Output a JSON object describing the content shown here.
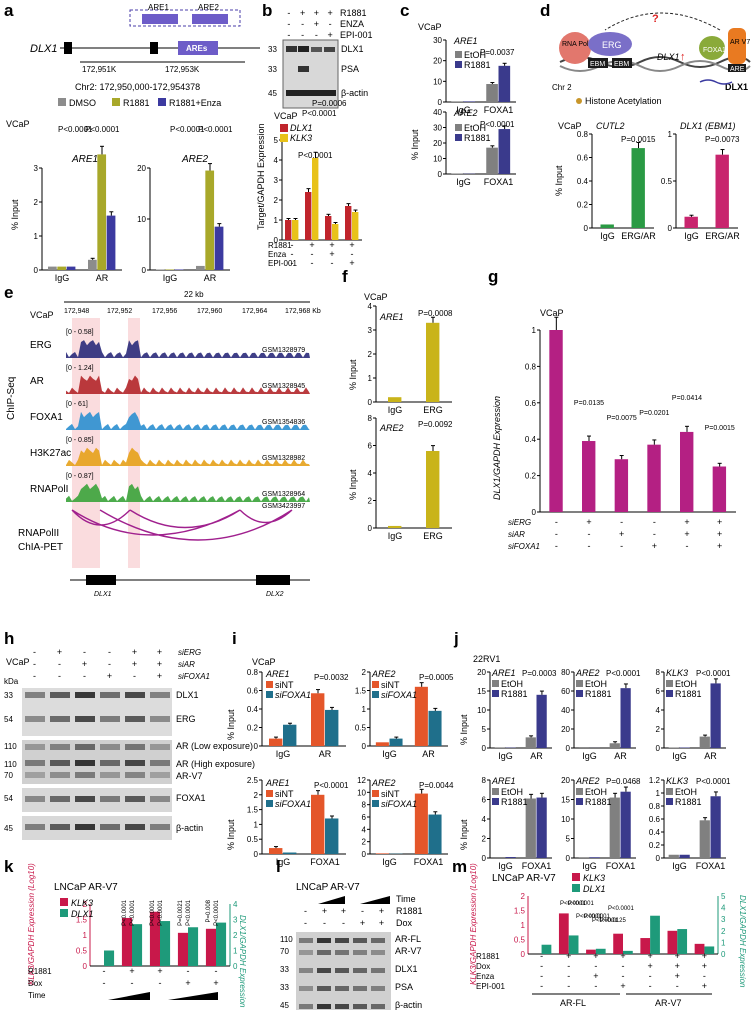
{
  "colors": {
    "dmso": "#8c8c8c",
    "r1881": "#a8a82a",
    "enza": "#3c3aa0",
    "dlx1": "#c0242c",
    "klk3": "#e8c21a",
    "etoh": "#808080",
    "r1881v": "#3a3a8c",
    "erg": "#2a9a44",
    "ergar": "#c8256e",
    "sint": "#e4562a",
    "sifoxa1": "#1f6f8b",
    "magenta": "#b42083",
    "erggold": "#c9b41a",
    "klk3m": "#c8184a",
    "dlx1t": "#1e9a7a"
  },
  "panels": {
    "a": "a",
    "b": "b",
    "c": "c",
    "d": "d",
    "e": "e",
    "f": "f",
    "g": "g",
    "h": "h",
    "i": "i",
    "j": "j",
    "k": "k",
    "l": "l",
    "m": "m"
  },
  "a": {
    "gene": "DLX1",
    "are1": "ARE1",
    "are2": "ARE2",
    "ares": "AREs",
    "coord1": "172,951K",
    "coord2": "172,953K",
    "chr": "Chr2: 172,950,000-172,954378",
    "cell": "VCaP",
    "legend": [
      "DMSO",
      "R1881",
      "R1881+Enza"
    ],
    "ylabel": "% Input",
    "p": "P<0.0001",
    "xt": [
      "IgG",
      "AR"
    ]
  },
  "b": {
    "conds": [
      "R1881",
      "ENZA",
      "EPI-001"
    ],
    "signs": [
      [
        "-",
        "+",
        "+",
        "+"
      ],
      [
        "-",
        "-",
        "+",
        "-"
      ],
      [
        "-",
        "-",
        "-",
        "+"
      ]
    ],
    "kda": [
      "33",
      "33",
      "45"
    ],
    "bands": [
      "DLX1",
      "PSA",
      "β-actin"
    ],
    "cell": "VCaP",
    "ylabel": "Target/GAPDH Expression",
    "legend": [
      "DLX1",
      "KLK3"
    ],
    "p1": "P=0.0006",
    "p2": "P<0.0001",
    "p3": "P<0.0001",
    "xl": [
      "R1881",
      "Enza",
      "EPI-001"
    ],
    "xs": [
      [
        "-",
        "+",
        "+",
        "+"
      ],
      [
        "-",
        "-",
        "+",
        "-"
      ],
      [
        "-",
        "-",
        "-",
        "+"
      ]
    ]
  },
  "c": {
    "cell": "VCaP",
    "t1": "ARE1",
    "t2": "ARE2",
    "p1": "P=0.0037",
    "p2": "P<0.0001",
    "legend": [
      "EtOH",
      "R1881"
    ],
    "ylabel": "% Input",
    "xt": [
      "IgG",
      "FOXA1"
    ]
  },
  "d": {
    "labels": [
      "RNA Pol",
      "ERG",
      "EBM",
      "EBM",
      "DLX1",
      "FOXA1",
      "AR V7",
      "ARE",
      "DLX1"
    ],
    "q": "?",
    "chr": "Chr 2",
    "hist": "Histone Acetylation",
    "cell": "VCaP",
    "t1": "CUTL2",
    "t2": "DLX1 (EBM1)",
    "p1": "P=0.0015",
    "p2": "P=0.0073",
    "ylabel": "% Input",
    "xt": [
      "IgG",
      "ERG/AR"
    ]
  },
  "e": {
    "cell": "VCaP",
    "scale": "22 kb",
    "coords": [
      "172,948",
      "172,952",
      "172,956",
      "172,960",
      "172,964",
      "172,968 Kb"
    ],
    "tracks": [
      {
        "name": "ERG",
        "range": "[0 - 0.58]",
        "gsm": "GSM1328979"
      },
      {
        "name": "AR",
        "range": "[0 - 1.24]",
        "gsm": "GSM1328945"
      },
      {
        "name": "FOXA1",
        "range": "[0 - 61]",
        "gsm": "GSM1354836"
      },
      {
        "name": "H3K27ac",
        "range": "[0 - 0.85]",
        "gsm": "GSM1328982"
      },
      {
        "name": "RNAPolI",
        "range": "[0 - 0.87]",
        "gsm": "GSM1328964"
      },
      {
        "name": "",
        "range": "",
        "gsm": "GSM3423997"
      }
    ],
    "side": "ChIP-Seq",
    "chia1": "RNAPolII",
    "chia2": "ChIA-PET",
    "genes": [
      "DLX1",
      "DLX2"
    ]
  },
  "f": {
    "cell": "VCaP",
    "t1": "ARE1",
    "t2": "ARE2",
    "p1": "P=0.0008",
    "p2": "P=0.0092",
    "ylabel": "% Input",
    "xt": [
      "IgG",
      "ERG"
    ]
  },
  "g": {
    "cell": "VCaP",
    "ylabel": "DLX1/GAPDH Expression",
    "yt": [
      "0.0",
      "0.2",
      "0.4",
      "0.6",
      "0.8",
      "1.0"
    ],
    "p": [
      "P=0.0135",
      "P=0.0075",
      "P=0.0201",
      "P=0.0414",
      "P=0.0015"
    ],
    "rows": [
      "siERG",
      "siAR",
      "siFOXA1"
    ],
    "signs": [
      [
        "-",
        "+",
        "-",
        "-",
        "+",
        "+"
      ],
      [
        "-",
        "-",
        "+",
        "-",
        "+",
        "+"
      ],
      [
        "-",
        "-",
        "-",
        "+",
        "-",
        "+"
      ]
    ]
  },
  "h": {
    "cell": "VCaP",
    "rows": [
      "siERG",
      "siAR",
      "siFOXA1"
    ],
    "signs": [
      [
        "-",
        "+",
        "-",
        "-",
        "+",
        "+"
      ],
      [
        "-",
        "-",
        "+",
        "-",
        "+",
        "+"
      ],
      [
        "-",
        "-",
        "-",
        "+",
        "-",
        "+"
      ]
    ],
    "kda": [
      "kDa",
      "33",
      "54",
      "110",
      "110",
      "70",
      "54",
      "45"
    ],
    "bands": [
      "DLX1",
      "ERG",
      "AR (Low exposure)",
      "AR (High exposure)",
      "AR-V7",
      "FOXA1",
      "β-actin"
    ]
  },
  "i": {
    "cell": "VCaP",
    "t": [
      "ARE1",
      "ARE2",
      "ARE1",
      "ARE2"
    ],
    "p": [
      "P=0.0032",
      "P=0.0005",
      "P<0.0001",
      "P=0.0044"
    ],
    "legend": [
      "siNT",
      "siFOXA1"
    ],
    "ylabel": "% Input",
    "xt1": [
      "IgG",
      "AR"
    ],
    "xt2": [
      "IgG",
      "FOXA1"
    ]
  },
  "j": {
    "cell": "22RV1",
    "t": [
      "ARE1",
      "ARE2",
      "KLK3",
      "ARE1",
      "ARE2",
      "KLK3"
    ],
    "p": [
      "P=0.0003",
      "P<0.0001",
      "P<0.0001",
      "",
      "P=0.0468",
      "P<0.0001"
    ],
    "legend": [
      "EtOH",
      "R1881"
    ],
    "ylabel": "% Input",
    "xt1": [
      "IgG",
      "AR"
    ],
    "xt2": [
      "IgG",
      "FOXA1"
    ]
  },
  "k": {
    "title": "LNCaP AR-V7",
    "legend": [
      "KLK3",
      "DLX1"
    ],
    "ylabelL": "KLK3/GAPDH Expression (Log10)",
    "ylabelR": "DLX1/GAPDH Expression",
    "p": [
      "P<0.0001",
      "P<0.0001",
      "P<0.0001",
      "P<0.0001",
      "P=0.0021",
      "P<0.0001",
      "P=0.008",
      "P<0.0001"
    ],
    "rows": [
      "R1881",
      "Dox",
      "Time"
    ],
    "signs": [
      [
        "-",
        "+",
        "+",
        "-",
        "-"
      ],
      [
        "-",
        "-",
        "-",
        "+",
        "+"
      ]
    ]
  },
  "l": {
    "title": "LNCaP AR-V7",
    "rows": [
      "Time",
      "R1881",
      "Dox"
    ],
    "signs": [
      [
        "-",
        "+",
        "+",
        "-",
        "+"
      ],
      [
        "-",
        "-",
        "-",
        "+",
        "+"
      ]
    ],
    "kda": [
      "110",
      "70",
      "33",
      "33",
      "45"
    ],
    "bands": [
      "AR-FL",
      "AR-V7",
      "DLX1",
      "PSA",
      "β-actin"
    ]
  },
  "m": {
    "title": "LNCaP AR-V7",
    "legend": [
      "KLK3",
      "DLX1"
    ],
    "ylabelL": "KLK3/GAPDH Expression (Log10)",
    "ylabelR": "DLX1/GAPDH Expression",
    "p": [
      "P<0.0001",
      "P<0.0001",
      "P<0.0001",
      "P<0.0001",
      "P<0.0001",
      "P=0.0125",
      "P<0.0001"
    ],
    "rows": [
      "R1881",
      "Dox",
      "Enza",
      "EPI-001"
    ],
    "signs": [
      [
        "-",
        "+",
        "+",
        "+",
        "+",
        "+",
        "+"
      ],
      [
        "-",
        "-",
        "-",
        "-",
        "+",
        "+",
        "+"
      ],
      [
        "-",
        "-",
        "+",
        "-",
        "-",
        "+",
        "-"
      ],
      [
        "-",
        "-",
        "-",
        "+",
        "-",
        "-",
        "+"
      ]
    ],
    "groups": [
      "AR-FL",
      "AR-V7"
    ]
  },
  "chart_data": [
    {
      "type": "bar",
      "panel": "a-ARE1",
      "categories": [
        "IgG",
        "AR"
      ],
      "series": [
        {
          "name": "DMSO",
          "values": [
            0.1,
            0.3
          ]
        },
        {
          "name": "R1881",
          "values": [
            0.1,
            3.4
          ]
        },
        {
          "name": "R1881+Enza",
          "values": [
            0.1,
            1.6
          ]
        }
      ],
      "ylabel": "% Input",
      "yticks": [
        0,
        1,
        2,
        3
      ]
    },
    {
      "type": "bar",
      "panel": "a-ARE2",
      "categories": [
        "IgG",
        "AR"
      ],
      "series": [
        {
          "name": "DMSO",
          "values": [
            0.1,
            0.8
          ]
        },
        {
          "name": "R1881",
          "values": [
            0.1,
            19.5
          ]
        },
        {
          "name": "R1881+Enza",
          "values": [
            0.1,
            8.5
          ]
        }
      ],
      "ylabel": "% Input",
      "yticks": [
        0,
        10,
        20
      ]
    },
    {
      "type": "bar",
      "panel": "b",
      "categories": [
        "1",
        "2",
        "3",
        "4"
      ],
      "series": [
        {
          "name": "DLX1",
          "values": [
            1.0,
            2.4,
            1.2,
            1.7
          ]
        },
        {
          "name": "KLK3",
          "values": [
            1.0,
            4.1,
            0.8,
            1.4
          ]
        }
      ],
      "ylabel": "Target/GAPDH Expression",
      "yticks": [
        0,
        1,
        2,
        3,
        4,
        5
      ]
    },
    {
      "type": "bar",
      "panel": "c-ARE1",
      "categories": [
        "IgG",
        "FOXA1"
      ],
      "series": [
        {
          "name": "EtOH",
          "values": [
            0.3,
            8.7
          ]
        },
        {
          "name": "R1881",
          "values": [
            0.3,
            17.5
          ]
        }
      ],
      "yticks": [
        0,
        10,
        20,
        30
      ]
    },
    {
      "type": "bar",
      "panel": "c-ARE2",
      "categories": [
        "IgG",
        "FOXA1"
      ],
      "series": [
        {
          "name": "EtOH",
          "values": [
            0.3,
            17
          ]
        },
        {
          "name": "R1881",
          "values": [
            0.2,
            29
          ]
        }
      ],
      "yticks": [
        0,
        10,
        20,
        30,
        40
      ]
    },
    {
      "type": "bar",
      "panel": "d-CUTL2",
      "categories": [
        "IgG",
        "ERG/AR"
      ],
      "values": [
        0.03,
        0.68
      ],
      "yticks": [
        0,
        0.2,
        0.4,
        0.6,
        0.8
      ]
    },
    {
      "type": "bar",
      "panel": "d-DLX1",
      "categories": [
        "IgG",
        "ERG/AR"
      ],
      "values": [
        0.12,
        0.78
      ],
      "yticks": [
        0,
        0.5,
        1
      ]
    },
    {
      "type": "bar",
      "panel": "f-ARE1",
      "categories": [
        "IgG",
        "ERG"
      ],
      "values": [
        0.2,
        3.3
      ],
      "yticks": [
        0,
        1,
        2,
        3,
        4
      ]
    },
    {
      "type": "bar",
      "panel": "f-ARE2",
      "categories": [
        "IgG",
        "ERG"
      ],
      "values": [
        0.15,
        5.6
      ],
      "yticks": [
        0,
        2,
        4,
        6,
        8
      ]
    },
    {
      "type": "bar",
      "panel": "g",
      "categories": [
        "1",
        "2",
        "3",
        "4",
        "5",
        "6"
      ],
      "values": [
        1.0,
        0.39,
        0.29,
        0.37,
        0.44,
        0.25
      ],
      "yticks": [
        0,
        0.2,
        0.4,
        0.6,
        0.8,
        1.0
      ]
    },
    {
      "type": "bar",
      "panel": "i-1",
      "categories": [
        "IgG",
        "AR"
      ],
      "series": [
        {
          "name": "siNT",
          "values": [
            0.08,
            0.57
          ]
        },
        {
          "name": "siFOXA1",
          "values": [
            0.23,
            0.39
          ]
        }
      ],
      "yticks": [
        0,
        0.2,
        0.4,
        0.6,
        0.8
      ]
    },
    {
      "type": "bar",
      "panel": "i-2",
      "categories": [
        "IgG",
        "AR"
      ],
      "series": [
        {
          "name": "siNT",
          "values": [
            0.1,
            1.6
          ]
        },
        {
          "name": "siFOXA1",
          "values": [
            0.2,
            0.95
          ]
        }
      ],
      "yticks": [
        0,
        0.5,
        1,
        1.5,
        2
      ]
    },
    {
      "type": "bar",
      "panel": "i-3",
      "categories": [
        "IgG",
        "FOXA1"
      ],
      "series": [
        {
          "name": "siNT",
          "values": [
            0.2,
            2.0
          ]
        },
        {
          "name": "siFOXA1",
          "values": [
            0.05,
            1.2
          ]
        }
      ],
      "yticks": [
        0,
        0.5,
        1,
        1.5,
        2,
        2.5
      ]
    },
    {
      "type": "bar",
      "panel": "i-4",
      "categories": [
        "IgG",
        "FOXA1"
      ],
      "series": [
        {
          "name": "siNT",
          "values": [
            0.1,
            9.8
          ]
        },
        {
          "name": "siFOXA1",
          "values": [
            0.05,
            6.4
          ]
        }
      ],
      "yticks": [
        0,
        2,
        4,
        6,
        8,
        10,
        12
      ]
    },
    {
      "type": "bar",
      "panel": "j-1",
      "categories": [
        "IgG",
        "AR"
      ],
      "series": [
        {
          "name": "EtOH",
          "values": [
            0.1,
            2.8
          ]
        },
        {
          "name": "R1881",
          "values": [
            0.1,
            14
          ]
        }
      ],
      "yticks": [
        0,
        5,
        10,
        15,
        20
      ]
    },
    {
      "type": "bar",
      "panel": "j-2",
      "categories": [
        "IgG",
        "AR"
      ],
      "series": [
        {
          "name": "EtOH",
          "values": [
            0.1,
            5
          ]
        },
        {
          "name": "R1881",
          "values": [
            0.1,
            63
          ]
        }
      ],
      "yticks": [
        0,
        20,
        40,
        60,
        80
      ]
    },
    {
      "type": "bar",
      "panel": "j-3",
      "categories": [
        "IgG",
        "AR"
      ],
      "series": [
        {
          "name": "EtOH",
          "values": [
            0.05,
            1.2
          ]
        },
        {
          "name": "R1881",
          "values": [
            0.05,
            6.8
          ]
        }
      ],
      "yticks": [
        0,
        2,
        4,
        6,
        8
      ]
    },
    {
      "type": "bar",
      "panel": "j-4",
      "categories": [
        "IgG",
        "FOXA1"
      ],
      "series": [
        {
          "name": "EtOH",
          "values": [
            0.1,
            6.1
          ]
        },
        {
          "name": "R1881",
          "values": [
            0.1,
            6.2
          ]
        }
      ],
      "yticks": [
        0,
        2,
        4,
        6,
        8
      ]
    },
    {
      "type": "bar",
      "panel": "j-5",
      "categories": [
        "IgG",
        "FOXA1"
      ],
      "series": [
        {
          "name": "EtOH",
          "values": [
            0.2,
            15.5
          ]
        },
        {
          "name": "R1881",
          "values": [
            0.2,
            17
          ]
        }
      ],
      "yticks": [
        0,
        5,
        10,
        15,
        20
      ]
    },
    {
      "type": "bar",
      "panel": "j-6",
      "categories": [
        "IgG",
        "FOXA1"
      ],
      "series": [
        {
          "name": "EtOH",
          "values": [
            0.05,
            0.58
          ]
        },
        {
          "name": "R1881",
          "values": [
            0.05,
            0.95
          ]
        }
      ],
      "yticks": [
        0,
        0.2,
        0.4,
        0.6,
        0.8,
        1.0,
        1.2
      ]
    },
    {
      "type": "bar",
      "panel": "k",
      "categories": [
        "1",
        "2",
        "3",
        "4",
        "5"
      ],
      "series": [
        {
          "name": "KLK3",
          "values": [
            0.0,
            1.55,
            1.75,
            1.07,
            1.2
          ]
        },
        {
          "name": "DLX1",
          "values": [
            1.0,
            2.7,
            2.9,
            2.5,
            2.8
          ]
        }
      ],
      "yticksL": [
        0,
        0.5,
        1,
        1.5,
        2
      ],
      "yticksR": [
        0,
        1,
        2,
        3,
        4
      ]
    },
    {
      "type": "bar",
      "panel": "m",
      "categories": [
        "1",
        "2",
        "3",
        "4",
        "5",
        "6",
        "7"
      ],
      "series": [
        {
          "name": "KLK3",
          "values": [
            0.0,
            1.4,
            0.15,
            0.7,
            0.55,
            0.8,
            0.35
          ]
        },
        {
          "name": "DLX1",
          "values": [
            0.8,
            1.6,
            0.45,
            0.27,
            3.3,
            2.15,
            0.65
          ]
        }
      ],
      "yticksL": [
        0,
        0.5,
        1,
        1.5,
        2
      ],
      "yticksR": [
        0,
        1,
        2,
        3,
        4,
        5
      ]
    }
  ]
}
